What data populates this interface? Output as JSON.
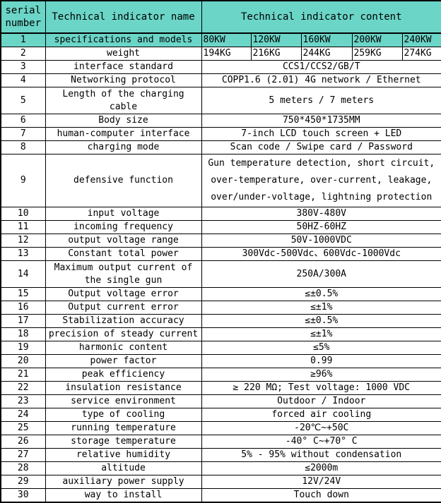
{
  "colors": {
    "header_bg": "#6BD5C7",
    "border": "#000000",
    "row_bg": "#FFFFFF",
    "text": "#000000"
  },
  "header": {
    "serial": "serial number",
    "name": "Technical indicator name",
    "content": "Technical indicator content"
  },
  "model_row": {
    "no": "1",
    "name": "specifications and models",
    "values": [
      "80KW",
      "120KW",
      "160KW",
      "200KW",
      "240KW"
    ]
  },
  "weight_row": {
    "no": "2",
    "name": "weight",
    "values": [
      "194KG",
      "216KG",
      "244KG",
      "259KG",
      "274KG"
    ]
  },
  "rows": [
    {
      "no": "3",
      "name": "interface standard",
      "content": "CCS1/CCS2/GB/T"
    },
    {
      "no": "4",
      "name": "Networking protocol",
      "content": "COPP1.6 (2.01) 4G network / Ethernet"
    },
    {
      "no": "5",
      "name": "Length of the charging cable",
      "content": "5 meters / 7 meters"
    },
    {
      "no": "6",
      "name": "Body size",
      "content": "750*450*1735MM"
    },
    {
      "no": "7",
      "name": "human-computer interface",
      "content": "7-inch LCD touch screen + LED"
    },
    {
      "no": "8",
      "name": "charging mode",
      "content": "Scan code / Swipe card / Password"
    },
    {
      "no": "9",
      "name": "defensive function",
      "content": "Gun temperature detection, short circuit, over-temperature, over-current, leakage, over/under-voltage, lightning protection"
    },
    {
      "no": "10",
      "name": "input voltage",
      "content": "380V-480V"
    },
    {
      "no": "11",
      "name": "incoming frequency",
      "content": "50HZ-60HZ"
    },
    {
      "no": "12",
      "name": "output voltage range",
      "content": "50V-1000VDC"
    },
    {
      "no": "13",
      "name": "Constant total power",
      "content": "300Vdc-500Vdc、600Vdc-1000Vdc"
    },
    {
      "no": "14",
      "name": "Maximum output current of the single gun",
      "content": "250A/300A"
    },
    {
      "no": "15",
      "name": "Output voltage error",
      "content": "≤±0.5%"
    },
    {
      "no": "16",
      "name": "Output current error",
      "content": "≤±1%"
    },
    {
      "no": "17",
      "name": "Stabilization accuracy",
      "content": "≤±0.5%"
    },
    {
      "no": "18",
      "name": "precision of steady current",
      "content": "≤±1%"
    },
    {
      "no": "19",
      "name": "harmonic content",
      "content": "≤5%"
    },
    {
      "no": "20",
      "name": "power factor",
      "content": "0.99"
    },
    {
      "no": "21",
      "name": "peak efficiency",
      "content": "≥96%"
    },
    {
      "no": "22",
      "name": "insulation resistance",
      "content": "≥ 220 MΩ; Test voltage: 1000 VDC"
    },
    {
      "no": "23",
      "name": "service environment",
      "content": "Outdoor / Indoor"
    },
    {
      "no": "24",
      "name": "type of cooling",
      "content": "forced air cooling"
    },
    {
      "no": "25",
      "name": "running temperature",
      "content": "-20℃~+50C"
    },
    {
      "no": "26",
      "name": "storage temperature",
      "content": "-40° C~+70° C"
    },
    {
      "no": "27",
      "name": "relative humidity",
      "content": "5% - 95% without condensation"
    },
    {
      "no": "28",
      "name": "altitude",
      "content": "≤2000m"
    },
    {
      "no": "29",
      "name": "auxiliary power supply",
      "content": "12V/24V"
    },
    {
      "no": "30",
      "name": "way to install",
      "content": "Touch down"
    }
  ]
}
